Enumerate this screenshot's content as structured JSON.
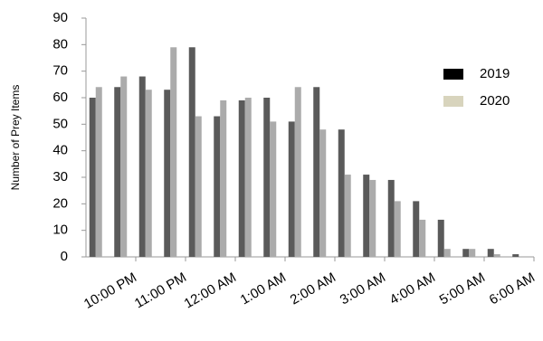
{
  "chart_data": {
    "type": "bar",
    "y_label": "Number of Prey Items",
    "categories": [
      null,
      "10:00 PM",
      null,
      "11:00 PM",
      null,
      "12:00 AM",
      null,
      "1:00 AM",
      null,
      "2:00 AM",
      null,
      "3:00 AM",
      null,
      "4:00 AM",
      null,
      "5:00 AM",
      null,
      "6:00 AM"
    ],
    "series": [
      {
        "name": "2019",
        "color": "#5a5a5a",
        "legend_color": "#000000",
        "values": [
          60,
          64,
          68,
          63,
          79,
          53,
          59,
          60,
          51,
          64,
          48,
          31,
          29,
          21,
          14,
          3,
          3,
          1
        ]
      },
      {
        "name": "2020",
        "color": "#ababab",
        "legend_color": "#d8d4bd",
        "values": [
          64,
          68,
          63,
          79,
          53,
          59,
          60,
          51,
          64,
          48,
          31,
          29,
          21,
          14,
          3,
          3,
          1,
          0
        ]
      }
    ],
    "ylim": [
      0,
      90
    ],
    "yticks": [
      0,
      10,
      20,
      30,
      40,
      50,
      60,
      70,
      80,
      90
    ],
    "grid": false,
    "legend": "right"
  }
}
